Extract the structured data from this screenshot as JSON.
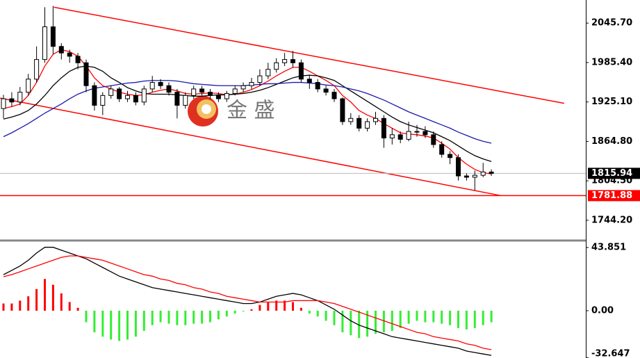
{
  "chart_data": [
    {
      "type": "candlestick",
      "watermark": "金 盛",
      "ylim": [
        1714.3,
        2081
      ],
      "yticks": [
        {
          "value": 2045.7,
          "label": "2045.70"
        },
        {
          "value": 1985.4,
          "label": "1985.40"
        },
        {
          "value": 1925.1,
          "label": "1925.10"
        },
        {
          "value": 1864.8,
          "label": "1864.80"
        },
        {
          "value": 1804.5,
          "label": "1804.50"
        },
        {
          "value": 1744.2,
          "label": "1744.20"
        }
      ],
      "last_price": 1815.94,
      "level_line": {
        "value": 1781.88,
        "color": "#ff0000"
      },
      "open": [
        1915,
        1930,
        1925,
        1940,
        1960,
        1990,
        2040,
        2010,
        2000,
        1995,
        1985,
        1950,
        1920,
        1935,
        1945,
        1930,
        1935,
        1925,
        1945,
        1955,
        1950,
        1940,
        1920,
        1935,
        1945,
        1940,
        1935,
        1930,
        1938,
        1945,
        1950,
        1955,
        1965,
        1975,
        1985,
        1990,
        1985,
        1960,
        1955,
        1945,
        1940,
        1930,
        1895,
        1900,
        1885,
        1895,
        1900,
        1870,
        1875,
        1868,
        1880,
        1880,
        1875,
        1860,
        1845,
        1840,
        1812,
        1810,
        1813,
        1818
      ],
      "high": [
        1936,
        1940,
        1948,
        1968,
        2010,
        2070,
        2072,
        2015,
        2005,
        2000,
        1990,
        1955,
        1940,
        1950,
        1948,
        1942,
        1940,
        1950,
        1965,
        1960,
        1955,
        1945,
        1940,
        1950,
        1950,
        1945,
        1940,
        1942,
        1950,
        1955,
        1962,
        1975,
        1985,
        1992,
        2000,
        2003,
        1990,
        1965,
        1960,
        1950,
        1945,
        1932,
        1908,
        1905,
        1900,
        1910,
        1905,
        1885,
        1880,
        1895,
        1890,
        1888,
        1880,
        1865,
        1850,
        1845,
        1816,
        1820,
        1832,
        1822
      ],
      "low": [
        1900,
        1918,
        1920,
        1935,
        1955,
        1985,
        1998,
        1990,
        1985,
        1975,
        1940,
        1912,
        1905,
        1930,
        1925,
        1925,
        1920,
        1920,
        1940,
        1945,
        1935,
        1900,
        1915,
        1930,
        1935,
        1930,
        1925,
        1925,
        1935,
        1940,
        1945,
        1950,
        1960,
        1970,
        1980,
        1978,
        1955,
        1945,
        1940,
        1935,
        1925,
        1890,
        1890,
        1880,
        1880,
        1890,
        1855,
        1860,
        1862,
        1865,
        1872,
        1870,
        1855,
        1840,
        1830,
        1805,
        1805,
        1790,
        1810,
        1812
      ],
      "close": [
        1930,
        1925,
        1940,
        1960,
        1990,
        2040,
        2010,
        2000,
        1995,
        1985,
        1950,
        1920,
        1935,
        1945,
        1930,
        1935,
        1925,
        1945,
        1955,
        1950,
        1940,
        1920,
        1935,
        1945,
        1940,
        1935,
        1930,
        1938,
        1945,
        1950,
        1955,
        1965,
        1975,
        1985,
        1990,
        1985,
        1960,
        1955,
        1945,
        1940,
        1930,
        1895,
        1900,
        1885,
        1895,
        1900,
        1870,
        1875,
        1868,
        1880,
        1880,
        1875,
        1860,
        1845,
        1840,
        1812,
        1810,
        1813,
        1818,
        1815.94
      ],
      "ma": [
        {
          "color": "#ff0000",
          "values": [
            1915,
            1918,
            1922,
            1935,
            1955,
            1980,
            1998,
            2005,
            2002,
            1995,
            1980,
            1962,
            1950,
            1945,
            1940,
            1937,
            1935,
            1936,
            1940,
            1943,
            1945,
            1942,
            1938,
            1937,
            1938,
            1939,
            1938,
            1936,
            1937,
            1940,
            1944,
            1950,
            1957,
            1965,
            1972,
            1978,
            1978,
            1972,
            1965,
            1958,
            1950,
            1935,
            1925,
            1912,
            1905,
            1900,
            1892,
            1885,
            1878,
            1876,
            1875,
            1873,
            1870,
            1862,
            1853,
            1840,
            1830,
            1822,
            1817,
            1815
          ]
        },
        {
          "color": "#000000",
          "values": [
            1899,
            1902,
            1906,
            1912,
            1922,
            1935,
            1950,
            1962,
            1972,
            1978,
            1980,
            1978,
            1972,
            1962,
            1955,
            1947,
            1942,
            1938,
            1937,
            1937,
            1937,
            1936,
            1935,
            1934,
            1934,
            1935,
            1936,
            1936,
            1937,
            1938,
            1940,
            1943,
            1947,
            1952,
            1957,
            1962,
            1965,
            1966,
            1965,
            1962,
            1958,
            1950,
            1942,
            1934,
            1926,
            1918,
            1910,
            1902,
            1895,
            1890,
            1886,
            1882,
            1878,
            1872,
            1866,
            1858,
            1850,
            1843,
            1838,
            1834
          ]
        },
        {
          "color": "#1a1aaa",
          "values": [
            1872,
            1878,
            1885,
            1892,
            1900,
            1908,
            1915,
            1922,
            1930,
            1937,
            1942,
            1946,
            1948,
            1950,
            1952,
            1954,
            1955,
            1957,
            1958,
            1958,
            1958,
            1957,
            1955,
            1953,
            1952,
            1951,
            1950,
            1950,
            1950,
            1950,
            1951,
            1952,
            1953,
            1953,
            1954,
            1955,
            1955,
            1954,
            1953,
            1951,
            1950,
            1948,
            1945,
            1942,
            1938,
            1933,
            1928,
            1922,
            1916,
            1910,
            1905,
            1900,
            1895,
            1890,
            1885,
            1879,
            1874,
            1869,
            1865,
            1862
          ]
        }
      ],
      "trend_lines": [
        {
          "color": "#ff0000",
          "x": [
            6.1,
            67.8
          ],
          "y": [
            2070,
            1923
          ]
        },
        {
          "color": "#ff0000",
          "x": [
            -0.4,
            60.1
          ],
          "y": [
            1931,
            1782
          ]
        }
      ]
    },
    {
      "type": "macd",
      "ylim": [
        -32.8,
        48.2
      ],
      "yticks": [
        43.851,
        {
          "value": 0,
          "label": "0.00"
        },
        -32.647
      ],
      "up_color": "#ff0000",
      "down_color": "#33ee33",
      "histogram": [
        5,
        5,
        7,
        10,
        15,
        22,
        18,
        12,
        6,
        2,
        -8,
        -15,
        -18,
        -20,
        -21,
        -20,
        -18,
        -14,
        -10,
        -8,
        -9,
        -10,
        -10,
        -9,
        -9,
        -8,
        -6,
        -4,
        -2,
        -0.5,
        1,
        4,
        6,
        7,
        7,
        6,
        2,
        -2,
        -4,
        -7,
        -10,
        -15,
        -17,
        -19,
        -18,
        -16,
        -15,
        -14,
        -12,
        -9,
        -7,
        -8,
        -8,
        -9,
        -10,
        -12,
        -13,
        -12,
        -10,
        -8
      ],
      "lines": [
        {
          "color": "#000000",
          "values": [
            25,
            28,
            31,
            35,
            40,
            44,
            44,
            42,
            40,
            38,
            36,
            33,
            30,
            27,
            24,
            22,
            20,
            18,
            16,
            15,
            14,
            13,
            12,
            11,
            10,
            9,
            8,
            7,
            6,
            5,
            5,
            6,
            8,
            10,
            11,
            12,
            11,
            9,
            7,
            4,
            1,
            -3,
            -7,
            -10,
            -12,
            -14,
            -16,
            -18,
            -19,
            -20,
            -21,
            -22,
            -23,
            -24,
            -25,
            -26,
            -28,
            -29,
            -30,
            -31
          ]
        },
        {
          "color": "#ff0000",
          "values": [
            23.6,
            25,
            27,
            29,
            31,
            33,
            35,
            37,
            38,
            38,
            37,
            36,
            35,
            33,
            31,
            29,
            27,
            25,
            24,
            22,
            21,
            19,
            18,
            16,
            15,
            13,
            12,
            10,
            9,
            8,
            7,
            6,
            6,
            6,
            6,
            7,
            7,
            7,
            7,
            6,
            5,
            3,
            1,
            -1,
            -3,
            -5,
            -7,
            -9,
            -11,
            -13,
            -15,
            -16,
            -18,
            -19,
            -20,
            -21,
            -23,
            -24,
            -26,
            -27
          ]
        }
      ]
    }
  ]
}
